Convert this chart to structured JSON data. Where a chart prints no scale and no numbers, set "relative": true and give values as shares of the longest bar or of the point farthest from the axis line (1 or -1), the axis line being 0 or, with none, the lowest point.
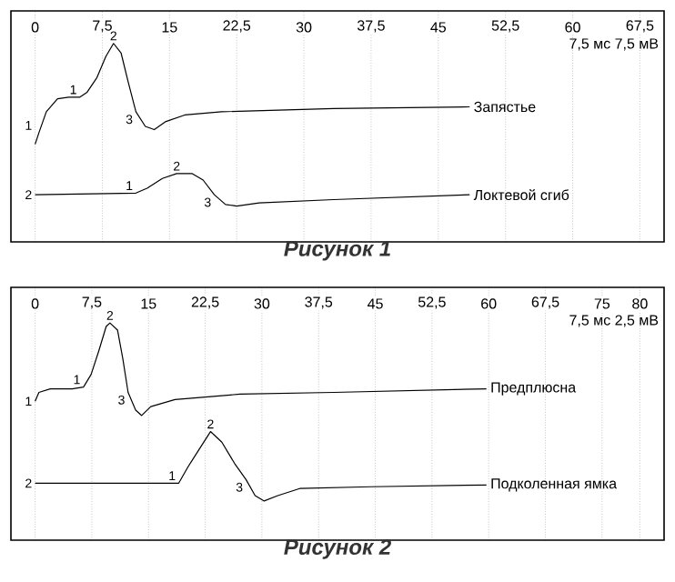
{
  "chart_data": [
    {
      "type": "line",
      "title": "Рисунок 1",
      "relative": true,
      "tick_labels": "x",
      "grid": "x",
      "line_style": "solid",
      "xlim": [
        0,
        67.5
      ],
      "xticks": [
        0,
        {
          "value": 7.5,
          "label": "7,5"
        },
        15,
        {
          "value": 22.5,
          "label": "22,5"
        },
        30,
        {
          "value": 37.5,
          "label": "37,5"
        },
        45,
        {
          "value": 52.5,
          "label": "52,5"
        },
        60,
        {
          "value": 67.5,
          "label": "67,5"
        }
      ],
      "series": [
        {
          "name": "Запястье",
          "color": "#000000",
          "x": [
            0,
            0.42,
            1.25,
            2.5,
            3.75,
            5,
            5.8,
            6.9,
            7.9,
            8.75,
            9.6,
            10.4,
            11.25,
            12.3,
            13.3,
            14.6,
            16.7,
            20.8,
            33.3,
            48.5
          ],
          "values": [
            0.38,
            0.45,
            0.58,
            0.66,
            0.67,
            0.67,
            0.7,
            0.79,
            0.92,
            1,
            0.94,
            0.76,
            0.58,
            0.49,
            0.47,
            0.52,
            0.56,
            0.58,
            0.6,
            0.61
          ]
        },
        {
          "name": "Локтевой сгиб",
          "color": "#000000",
          "x": [
            0,
            11.25,
            12.5,
            14.2,
            15.8,
            17.5,
            18.75,
            20,
            21.25,
            22.5,
            25,
            33.3,
            48.5
          ],
          "values": [
            0.07,
            0.08,
            0.11,
            0.17,
            0.2,
            0.2,
            0.16,
            0.07,
            0.01,
            0,
            0.02,
            0.04,
            0.07
          ]
        }
      ],
      "annotations": [
        "7,5 мс  7,5 мВ",
        {
          "text": "1",
          "x": 0,
          "y": 0.45
        },
        {
          "text": "1",
          "x": 5,
          "y": 0.67
        },
        {
          "text": "2",
          "x": 8.75,
          "y": 1
        },
        {
          "text": "3",
          "x": 11.25,
          "y": 0.58
        },
        {
          "text": "2",
          "x": 0,
          "y": 0.07
        },
        {
          "text": "1",
          "x": 11.25,
          "y": 0.08
        },
        {
          "text": "2",
          "x": 15.8,
          "y": 0.2
        },
        {
          "text": "3",
          "x": 20,
          "y": 0.07
        }
      ]
    },
    {
      "type": "line",
      "title": "Рисунок 2",
      "relative": true,
      "tick_labels": "x",
      "grid": "x",
      "line_style": "solid",
      "xlim": [
        0,
        80
      ],
      "xticks": [
        0,
        {
          "value": 7.5,
          "label": "7,5"
        },
        15,
        {
          "value": 22.5,
          "label": "22,5"
        },
        30,
        {
          "value": 37.5,
          "label": "37,5"
        },
        45,
        {
          "value": 52.5,
          "label": "52,5"
        },
        60,
        {
          "value": 67.5,
          "label": "67,5"
        },
        75,
        80
      ],
      "series": [
        {
          "name": "Предплюсна",
          "color": "#000000",
          "x": [
            0,
            0.5,
            2,
            4.9,
            6.4,
            7.4,
            8.4,
            9.4,
            9.9,
            10.9,
            11.6,
            12.3,
            13.3,
            14.1,
            15.3,
            18.5,
            27.1,
            39.5,
            59.7
          ],
          "values": [
            0.56,
            0.61,
            0.63,
            0.63,
            0.64,
            0.71,
            0.84,
            0.98,
            1,
            0.96,
            0.8,
            0.61,
            0.51,
            0.48,
            0.53,
            0.57,
            0.6,
            0.61,
            0.63
          ]
        },
        {
          "name": "Подколенная ямка",
          "color": "#000000",
          "x": [
            0,
            19,
            20.2,
            21.7,
            23.2,
            24.7,
            26.4,
            27.9,
            29.1,
            30.3,
            32.1,
            35,
            44.4,
            59.7
          ],
          "values": [
            0.1,
            0.1,
            0.19,
            0.29,
            0.39,
            0.33,
            0.21,
            0.12,
            0.03,
            0,
            0.03,
            0.07,
            0.08,
            0.09
          ]
        }
      ],
      "annotations": [
        "7,5 мс  2,5 мВ",
        {
          "text": "1",
          "x": 0,
          "y": 0.56
        },
        {
          "text": "1",
          "x": 6.4,
          "y": 0.64
        },
        {
          "text": "2",
          "x": 9.9,
          "y": 1
        },
        {
          "text": "3",
          "x": 12.3,
          "y": 0.61
        },
        {
          "text": "2",
          "x": 0,
          "y": 0.1
        },
        {
          "text": "1",
          "x": 19,
          "y": 0.1
        },
        {
          "text": "2",
          "x": 23.2,
          "y": 0.39
        },
        {
          "text": "3",
          "x": 27.9,
          "y": 0.12
        }
      ]
    }
  ]
}
